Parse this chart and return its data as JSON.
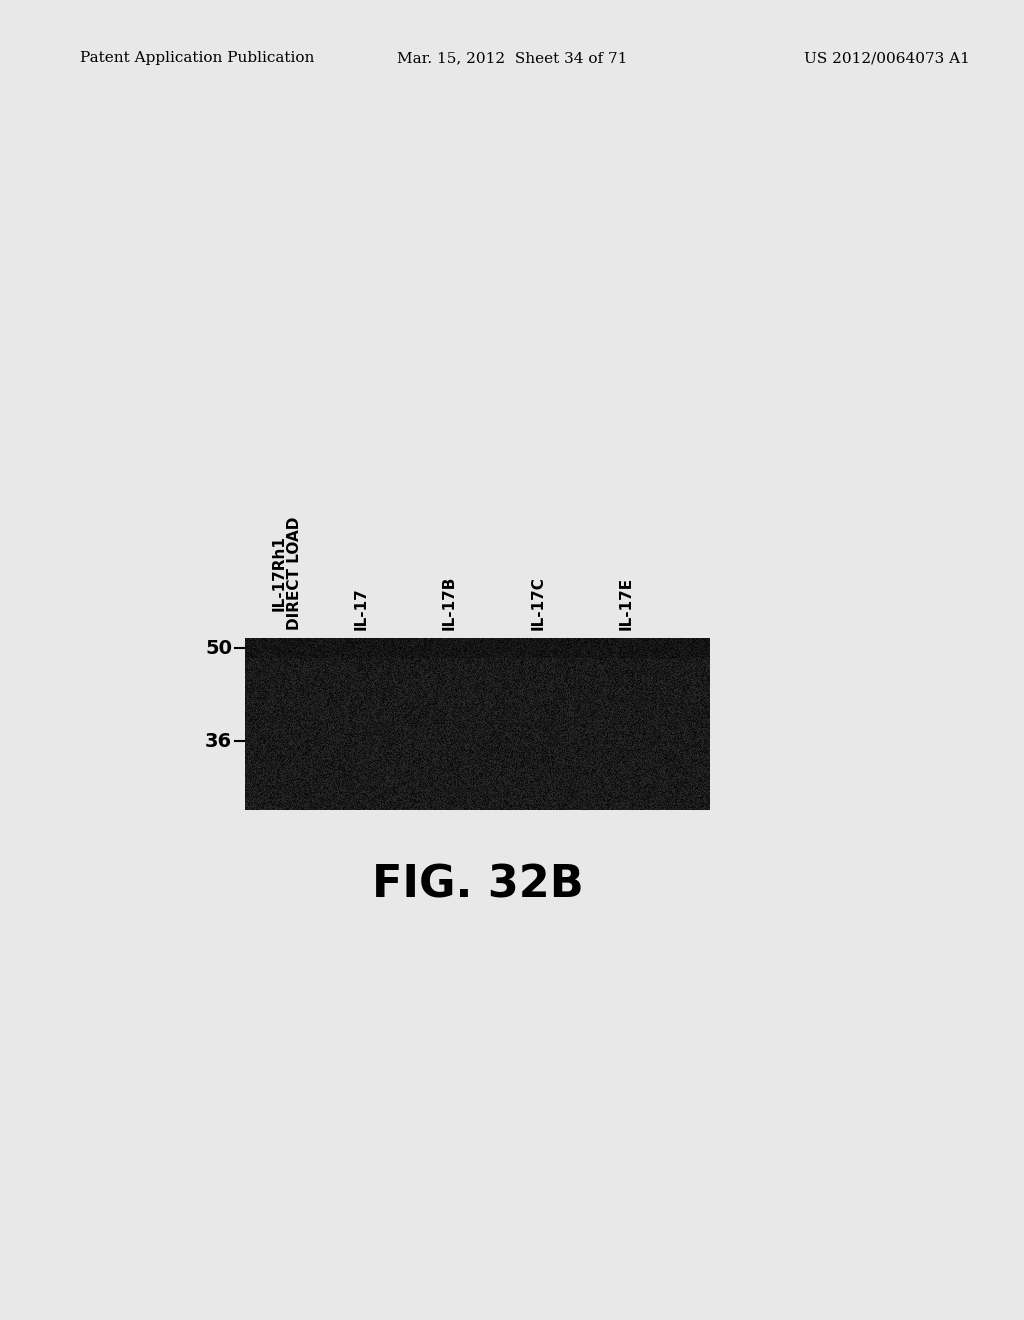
{
  "title": "",
  "fig_label": "FIG. 32B",
  "header_left": "Patent Application Publication",
  "header_center": "Mar. 15, 2012  Sheet 34 of 71",
  "header_right": "US 2012/0064073 A1",
  "lane_labels": [
    "IL-17Rh1\nDIRECT LOAD",
    "IL-17",
    "IL-17B",
    "IL-17C",
    "IL-17E"
  ],
  "marker_labels": [
    "50",
    "36"
  ],
  "background_color": "#e8e8e8",
  "fig_label_fontsize": 32,
  "header_fontsize": 11,
  "lane_label_fontsize": 11,
  "marker_fontsize": 14
}
